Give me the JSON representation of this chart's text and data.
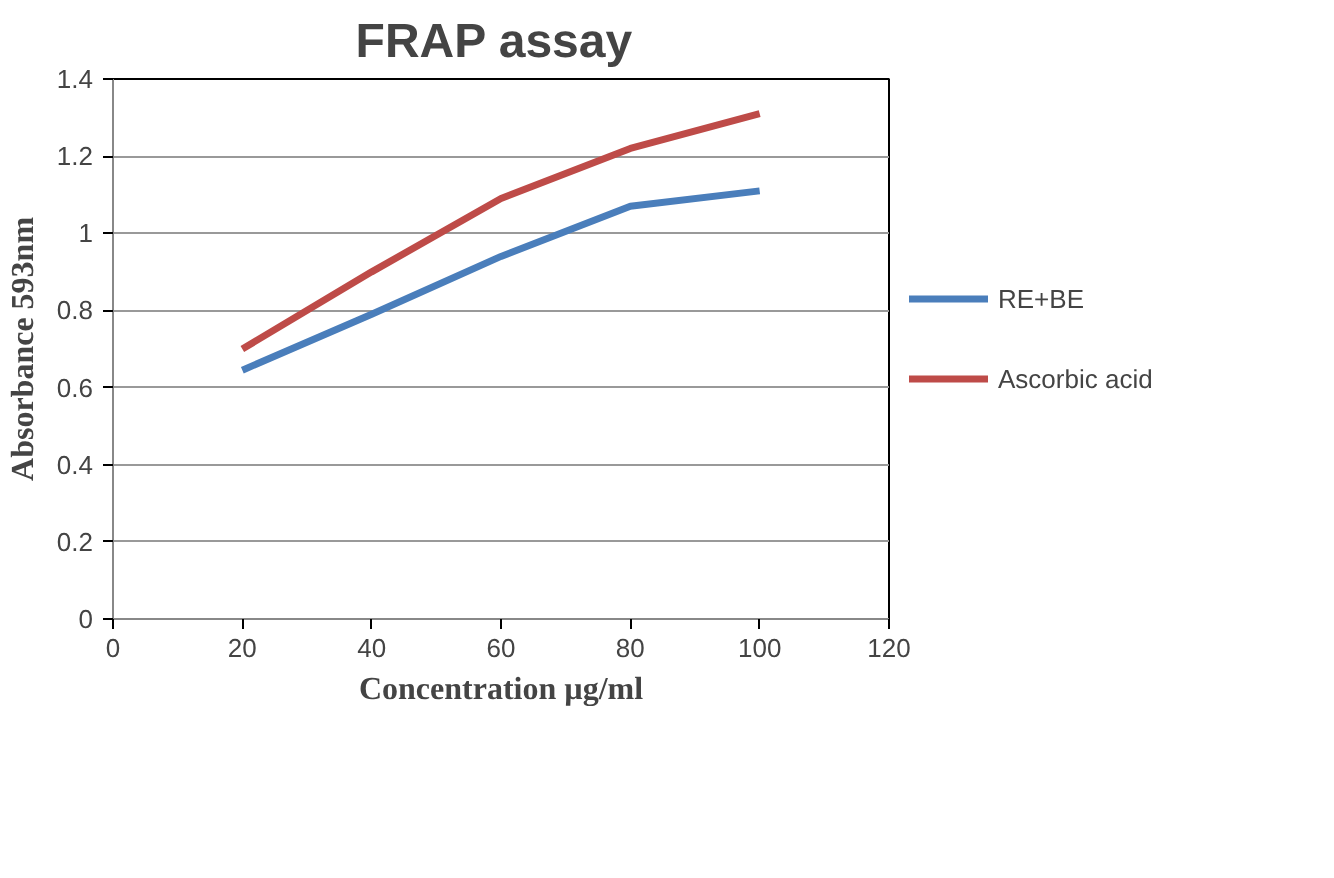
{
  "chart_data": {
    "type": "line",
    "title": "FRAP  assay",
    "xlabel": "Concentration µg/ml",
    "ylabel": "Absorbance 593nm",
    "x": [
      20,
      40,
      60,
      80,
      100
    ],
    "series": [
      {
        "name": "RE+BE",
        "color": "#4a7ebb",
        "values": [
          0.645,
          0.79,
          0.94,
          1.07,
          1.11
        ]
      },
      {
        "name": "Ascorbic acid",
        "color": "#be4b48",
        "values": [
          0.7,
          0.9,
          1.09,
          1.22,
          1.31
        ]
      }
    ],
    "xlim": [
      0,
      120
    ],
    "xticks": [
      0,
      20,
      40,
      60,
      80,
      100,
      120
    ],
    "ylim": [
      0,
      1.4
    ],
    "yticks": [
      0,
      0.2,
      0.4,
      0.6,
      0.8,
      1,
      1.2,
      1.4
    ],
    "grid": "y",
    "legend": "right",
    "marker": "none",
    "line_style": "solid"
  }
}
